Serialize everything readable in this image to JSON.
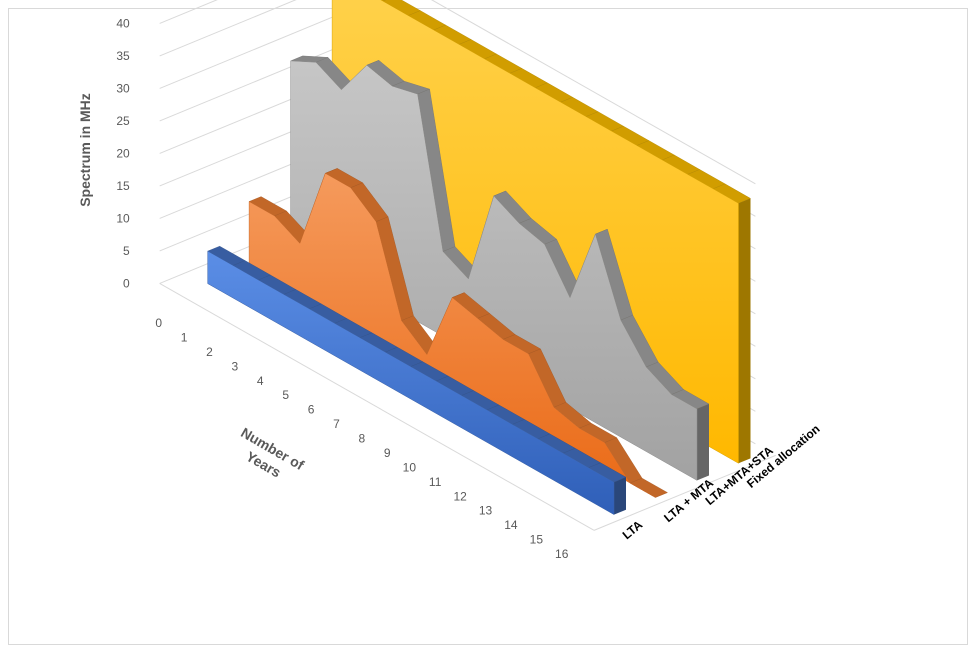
{
  "chart_data": {
    "type": "area",
    "variant": "3d-area",
    "title": "",
    "ylabel": "Spectrum in MHz",
    "xlabel": "Number of Years",
    "ylim": [
      0,
      40
    ],
    "y_ticks": [
      0,
      5,
      10,
      15,
      20,
      25,
      30,
      35,
      40
    ],
    "x_ticks": [
      0,
      1,
      2,
      3,
      4,
      5,
      6,
      7,
      8,
      9,
      10,
      11,
      12,
      13,
      14,
      15,
      16
    ],
    "grid": true,
    "legend": "none",
    "series": [
      {
        "name": "LTA",
        "color": "#4472c4",
        "values": [
          5,
          5,
          5,
          5,
          5,
          5,
          5,
          5,
          5,
          5,
          5,
          5,
          5,
          5,
          5,
          5,
          5
        ]
      },
      {
        "name": "LTA + MTA",
        "color": "#ed7d31",
        "values": [
          10,
          10,
          8,
          21,
          21,
          18,
          5,
          2,
          13,
          12,
          11,
          11,
          5,
          4,
          4,
          0,
          0
        ]
      },
      {
        "name": "LTA+MTA+STA",
        "color": "#a5a5a5",
        "values": [
          29,
          31,
          29,
          35,
          34,
          35,
          13,
          11,
          26,
          24,
          23,
          17,
          29,
          18,
          13,
          11,
          11
        ]
      },
      {
        "name": "Fixed allocation",
        "color": "#ffc000",
        "values": [
          40,
          40,
          40,
          40,
          40,
          40,
          40,
          40,
          40,
          40,
          40,
          40,
          40,
          40,
          40,
          40,
          40
        ]
      }
    ]
  }
}
